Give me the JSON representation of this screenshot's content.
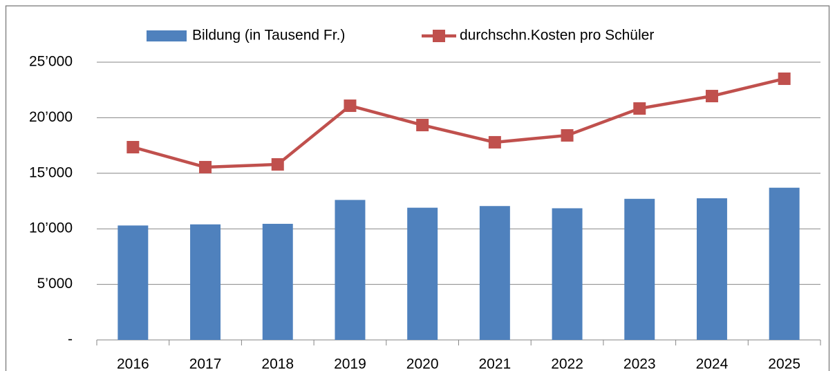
{
  "chart_data": {
    "type": "bar",
    "categories": [
      "2016",
      "2017",
      "2018",
      "2019",
      "2020",
      "2021",
      "2022",
      "2023",
      "2024",
      "2025"
    ],
    "series": [
      {
        "name": "Bildung (in Tausend Fr.)",
        "type": "bar",
        "color": "#4f81bd",
        "values": [
          10300,
          10400,
          10450,
          12600,
          11900,
          12050,
          11850,
          12700,
          12750,
          13700
        ]
      },
      {
        "name": "durchschn.Kosten pro Schüler",
        "type": "line",
        "color": "#c0504d",
        "values": [
          17350,
          15550,
          15800,
          21080,
          19340,
          17790,
          18410,
          20830,
          21950,
          23510
        ]
      }
    ],
    "ylim": [
      0,
      25000
    ],
    "yticks": [
      {
        "value": 0,
        "label": "-"
      },
      {
        "value": 5000,
        "label": "5’000"
      },
      {
        "value": 10000,
        "label": "10’000"
      },
      {
        "value": 15000,
        "label": "15’000"
      },
      {
        "value": 20000,
        "label": "20’000"
      },
      {
        "value": 25000,
        "label": "25’000"
      }
    ],
    "grid": true,
    "legend": "top"
  }
}
